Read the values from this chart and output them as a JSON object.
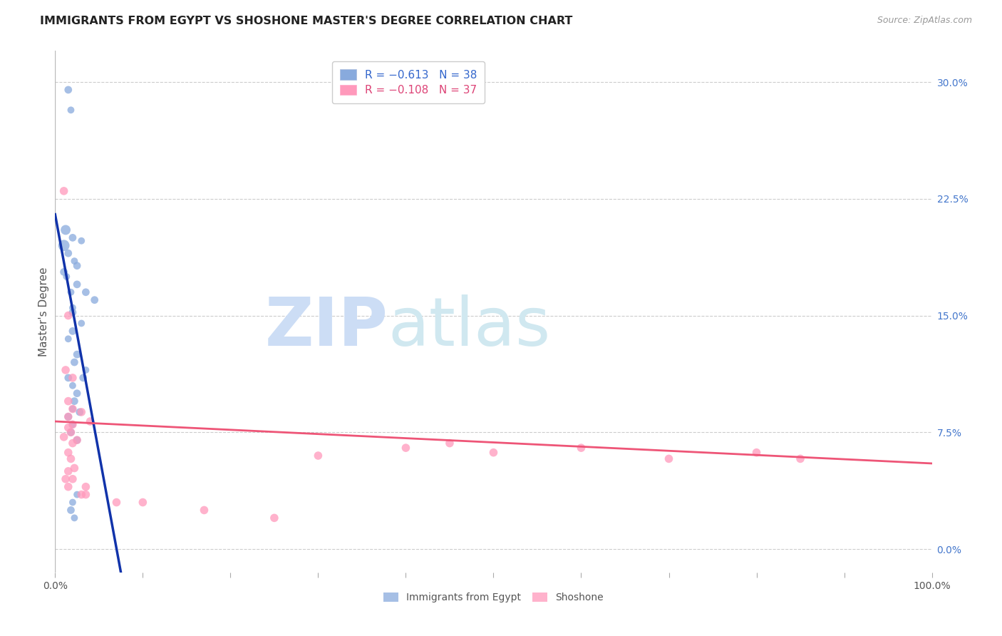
{
  "title": "IMMIGRANTS FROM EGYPT VS SHOSHONE MASTER'S DEGREE CORRELATION CHART",
  "source": "Source: ZipAtlas.com",
  "ylabel": "Master's Degree",
  "ytick_vals": [
    0.0,
    7.5,
    15.0,
    22.5,
    30.0
  ],
  "xlim": [
    0,
    100
  ],
  "ylim": [
    -1.5,
    32
  ],
  "legend_blue_r": "R = −0.613",
  "legend_blue_n": "N = 38",
  "legend_pink_r": "R = −0.108",
  "legend_pink_n": "N = 37",
  "blue_color": "#88AADD",
  "pink_color": "#FF99BB",
  "blue_line_color": "#1133AA",
  "pink_line_color": "#EE5577",
  "watermark_zip": "ZIP",
  "watermark_atlas": "atlas",
  "background_color": "#FFFFFF",
  "grid_color": "#CCCCCC",
  "blue_scatter_x": [
    1.5,
    1.8,
    1.2,
    2.0,
    3.0,
    1.0,
    1.5,
    2.2,
    2.5,
    1.0,
    1.3,
    2.5,
    1.8,
    3.5,
    4.5,
    2.0,
    2.0,
    3.0,
    2.0,
    1.5,
    2.5,
    2.2,
    3.5,
    3.2,
    1.5,
    2.0,
    2.5,
    2.2,
    2.0,
    2.8,
    1.5,
    2.0,
    1.8,
    2.5,
    2.5,
    2.0,
    1.8,
    2.2
  ],
  "blue_scatter_y": [
    29.5,
    28.2,
    20.5,
    20.0,
    19.8,
    19.5,
    19.0,
    18.5,
    18.2,
    17.8,
    17.5,
    17.0,
    16.5,
    16.5,
    16.0,
    15.5,
    15.2,
    14.5,
    14.0,
    13.5,
    12.5,
    12.0,
    11.5,
    11.0,
    11.0,
    10.5,
    10.0,
    9.5,
    9.0,
    8.8,
    8.5,
    8.0,
    7.5,
    7.0,
    3.5,
    3.0,
    2.5,
    2.0
  ],
  "blue_scatter_size": [
    60,
    50,
    100,
    60,
    50,
    130,
    60,
    50,
    60,
    60,
    50,
    60,
    50,
    60,
    60,
    50,
    60,
    50,
    60,
    50,
    60,
    60,
    50,
    60,
    60,
    50,
    60,
    60,
    50,
    60,
    60,
    50,
    60,
    60,
    50,
    50,
    60,
    50
  ],
  "pink_scatter_x": [
    1.0,
    1.5,
    1.2,
    2.0,
    1.5,
    2.0,
    3.0,
    4.0,
    1.5,
    2.0,
    1.5,
    1.8,
    2.5,
    1.0,
    2.0,
    1.5,
    1.8,
    2.2,
    1.5,
    1.2,
    2.0,
    3.5,
    1.5,
    3.0,
    3.5,
    7.0,
    10.0,
    17.0,
    30.0,
    40.0,
    50.0,
    60.0,
    70.0,
    80.0,
    85.0,
    45.0,
    25.0
  ],
  "pink_scatter_y": [
    23.0,
    15.0,
    11.5,
    11.0,
    9.5,
    9.0,
    8.8,
    8.2,
    8.5,
    8.0,
    7.8,
    7.5,
    7.0,
    7.2,
    6.8,
    6.2,
    5.8,
    5.2,
    5.0,
    4.5,
    4.5,
    4.0,
    4.0,
    3.5,
    3.5,
    3.0,
    3.0,
    2.5,
    6.0,
    6.5,
    6.2,
    6.5,
    5.8,
    6.2,
    5.8,
    6.8,
    2.0
  ],
  "pink_scatter_size": [
    70,
    70,
    70,
    70,
    70,
    70,
    70,
    70,
    70,
    70,
    70,
    70,
    70,
    70,
    70,
    70,
    70,
    70,
    70,
    70,
    70,
    70,
    70,
    70,
    70,
    70,
    70,
    70,
    70,
    70,
    70,
    70,
    70,
    70,
    70,
    70,
    70
  ],
  "blue_line_x0": 0.0,
  "blue_line_y0": 21.5,
  "blue_line_x1": 7.5,
  "blue_line_y1": -1.5,
  "pink_line_x0": 0.0,
  "pink_line_y0": 8.2,
  "pink_line_x1": 100.0,
  "pink_line_y1": 5.5
}
